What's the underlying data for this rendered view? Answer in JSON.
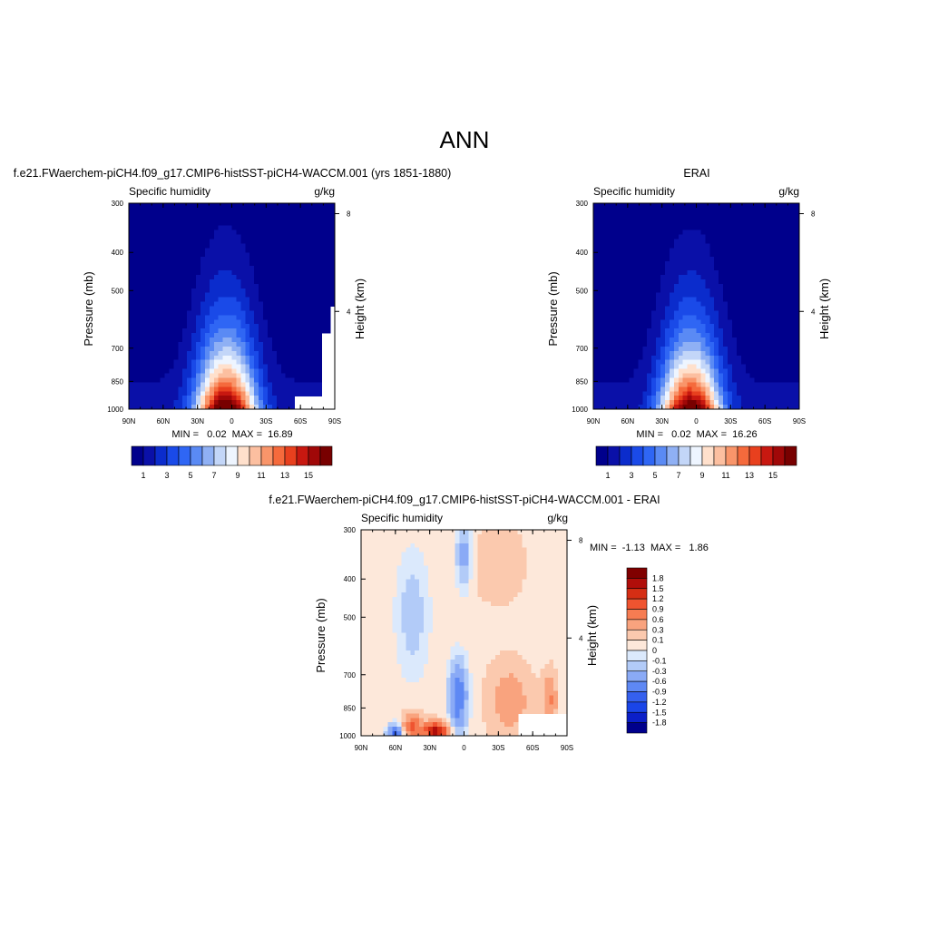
{
  "page": {
    "title": "ANN"
  },
  "colors": {
    "abs_palette": [
      "#00008c",
      "#0a10a8",
      "#0b2ccc",
      "#1a4ae8",
      "#2f66f4",
      "#5a8af4",
      "#8fb0f4",
      "#c3d6f8",
      "#eef5ff",
      "#ffe0cc",
      "#fcbfa0",
      "#f9956a",
      "#f56a3c",
      "#e8401e",
      "#c81810",
      "#a00808",
      "#780000"
    ],
    "diff_palette": [
      "#00008c",
      "#0b1fc8",
      "#1a45e8",
      "#3560ee",
      "#5e88f4",
      "#8aaaf6",
      "#b2cbf8",
      "#dbe9fc",
      "#fde8da",
      "#fbc9ae",
      "#f9a37e",
      "#f67c52",
      "#ef5430",
      "#d52e14",
      "#b00e0a",
      "#800000"
    ]
  },
  "chart_data": [
    {
      "type": "heatmap",
      "panel_title": "f.e21.FWaerchem-piCH4.f09_g17.CMIP6-histSST-piCH4-WACCM.001 (yrs 1851-1880)",
      "left_label": "Specific humidity",
      "right_label": "g/kg",
      "ylabel": "Pressure (mb)",
      "y2label": "Height (km)",
      "x_ticks": [
        "90N",
        "60N",
        "30N",
        "0",
        "30S",
        "60S",
        "90S"
      ],
      "y_ticks": [
        "300",
        "400",
        "500",
        "700",
        "850",
        "1000"
      ],
      "y2_ticks": [
        "8",
        "4"
      ],
      "stats": "MIN =   0.02  MAX =  16.89",
      "min": 0.02,
      "max": 16.89,
      "colorbar_labels": [
        "1",
        "3",
        "5",
        "7",
        "9",
        "11",
        "13",
        "15"
      ],
      "colorbar_levels": 17
    },
    {
      "type": "heatmap",
      "panel_title": "ERAI",
      "left_label": "Specific humidity",
      "right_label": "g/kg",
      "ylabel": "Pressure (mb)",
      "y2label": "Height (km)",
      "x_ticks": [
        "90N",
        "60N",
        "30N",
        "0",
        "30S",
        "60S",
        "90S"
      ],
      "y_ticks": [
        "300",
        "400",
        "500",
        "700",
        "850",
        "1000"
      ],
      "y2_ticks": [
        "8",
        "4"
      ],
      "stats": "MIN =   0.02  MAX =  16.26",
      "min": 0.02,
      "max": 16.26,
      "colorbar_labels": [
        "1",
        "3",
        "5",
        "7",
        "9",
        "11",
        "13",
        "15"
      ],
      "colorbar_levels": 17
    },
    {
      "type": "heatmap",
      "panel_title": "f.e21.FWaerchem-piCH4.f09_g17.CMIP6-histSST-piCH4-WACCM.001 - ERAI",
      "left_label": "Specific humidity",
      "right_label": "g/kg",
      "ylabel": "Pressure (mb)",
      "y2label": "Height (km)",
      "x_ticks": [
        "90N",
        "60N",
        "30N",
        "0",
        "30S",
        "60S",
        "90S"
      ],
      "y_ticks": [
        "300",
        "400",
        "500",
        "700",
        "850",
        "1000"
      ],
      "y2_ticks": [
        "8",
        "4"
      ],
      "stats": "MIN =  -1.13  MAX =   1.86",
      "min": -1.13,
      "max": 1.86,
      "colorbar_labels": [
        "1.8",
        "1.5",
        "1.2",
        "0.9",
        "0.6",
        "0.3",
        "0.1",
        "0",
        "-0.1",
        "-0.3",
        "-0.6",
        "-0.9",
        "-1.2",
        "-1.5",
        "-1.8"
      ],
      "colorbar_levels": 16
    }
  ]
}
